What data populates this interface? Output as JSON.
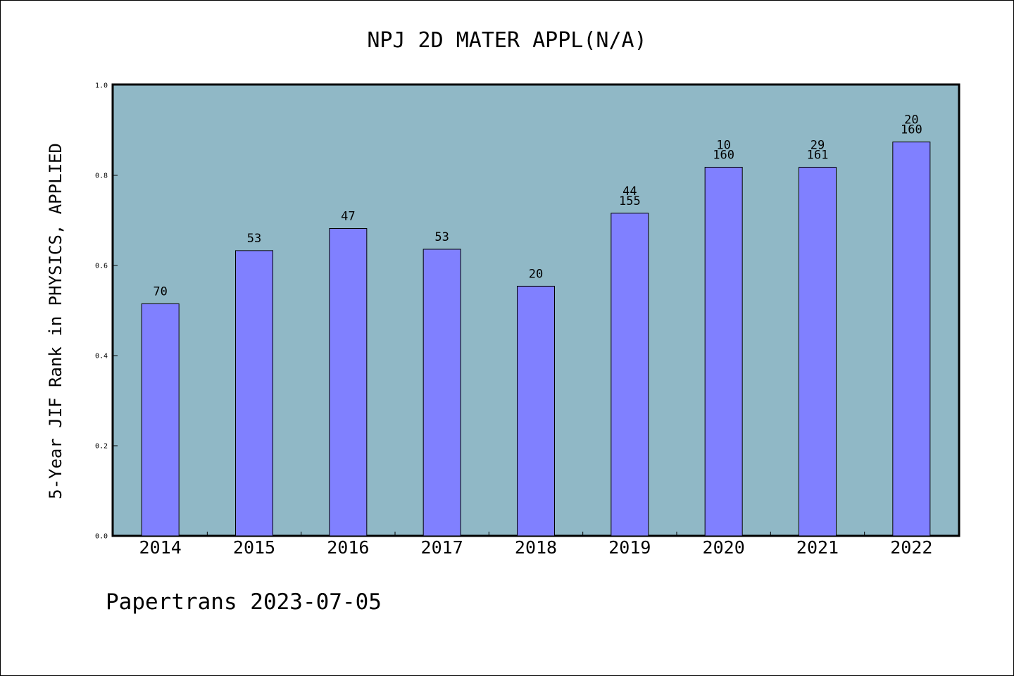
{
  "chart_data": {
    "type": "bar",
    "title": "NPJ 2D MATER APPL(N/A)",
    "xlabel": "",
    "ylabel": "5-Year JIF Rank in PHYSICS, APPLIED",
    "ylim": [
      0,
      1.0
    ],
    "yticks": [
      "0.0",
      "0.2",
      "0.4",
      "0.6",
      "0.8",
      "1.0"
    ],
    "grid": false,
    "categories": [
      "2014",
      "2015",
      "2016",
      "2017",
      "2018",
      "2019",
      "2020",
      "2021",
      "2022"
    ],
    "values": [
      0.515,
      0.633,
      0.682,
      0.636,
      0.554,
      0.716,
      0.818,
      0.818,
      0.874
    ],
    "labels": [
      [
        "70"
      ],
      [
        "53"
      ],
      [
        "47"
      ],
      [
        "53"
      ],
      [
        "20"
      ],
      [
        "44",
        "155"
      ],
      [
        "10",
        "160"
      ],
      [
        "29",
        "161"
      ],
      [
        "20",
        "160"
      ]
    ],
    "colors": {
      "plot_bg": "#90b8c6",
      "bar": "#8080ff",
      "bar_edge": "#000000"
    }
  },
  "footer": "Papertrans 2023-07-05"
}
